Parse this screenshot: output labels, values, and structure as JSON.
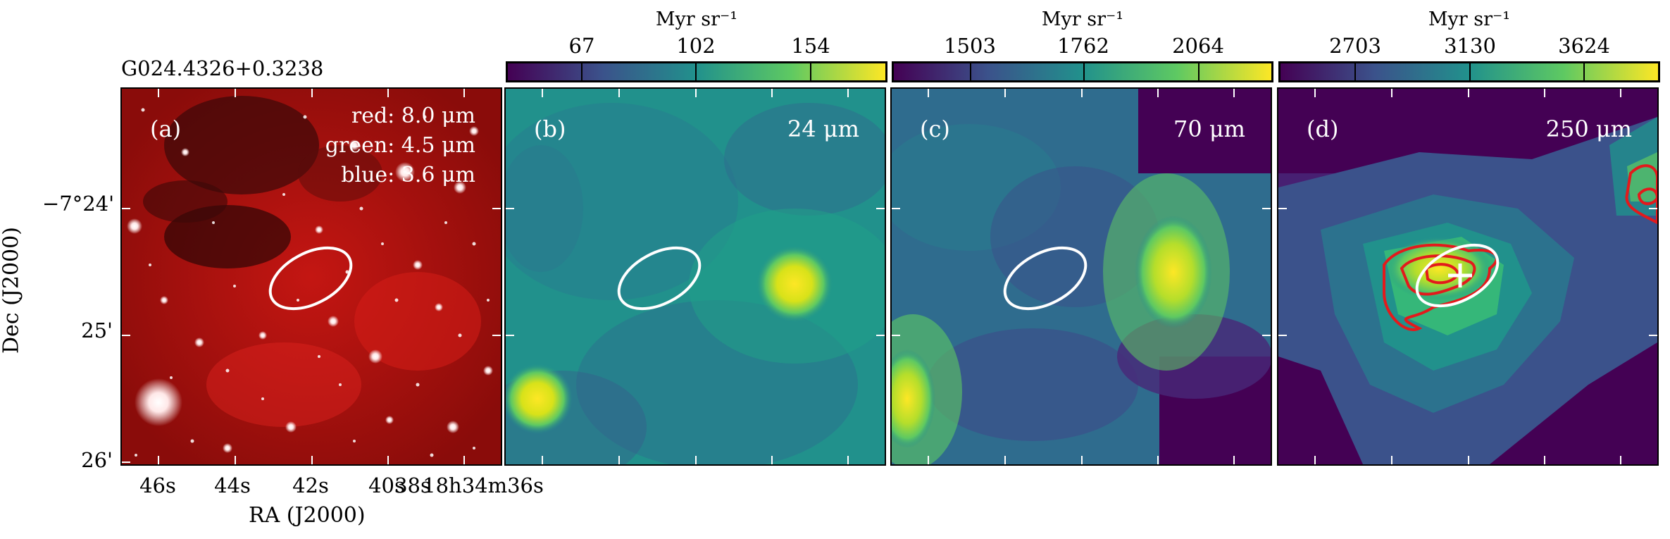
{
  "source_name": "G024.4326+0.3238",
  "colormap_colors": [
    "#440154",
    "#3b528b",
    "#21918c",
    "#5ec962",
    "#fde725"
  ],
  "contour_color": "#e31a1c",
  "panels": [
    {
      "id": "a",
      "label": "(a)",
      "rgb_lines": [
        "red: 8.0 μm",
        "green: 4.5 μm",
        "blue: 3.6 μm"
      ]
    },
    {
      "id": "b",
      "label": "(b)",
      "wavelength": "24 μm",
      "colorbar": {
        "unit": "Myr sr⁻¹",
        "ticks": [
          "67",
          "102",
          "154"
        ]
      }
    },
    {
      "id": "c",
      "label": "(c)",
      "wavelength": "70 μm",
      "colorbar": {
        "unit": "Myr sr⁻¹",
        "ticks": [
          "1503",
          "1762",
          "2064"
        ]
      }
    },
    {
      "id": "d",
      "label": "(d)",
      "wavelength": "250 μm",
      "colorbar": {
        "unit": "Myr sr⁻¹",
        "ticks": [
          "2703",
          "3130",
          "3624"
        ]
      }
    }
  ],
  "axes": {
    "ylabel": "Dec (J2000)",
    "xlabel": "RA (J2000)",
    "yticks": [
      "−7°24'",
      "25'",
      "26'"
    ],
    "xticks": [
      "46s",
      "44s",
      "42s",
      "40s",
      "38s",
      "18h34m36s"
    ]
  }
}
